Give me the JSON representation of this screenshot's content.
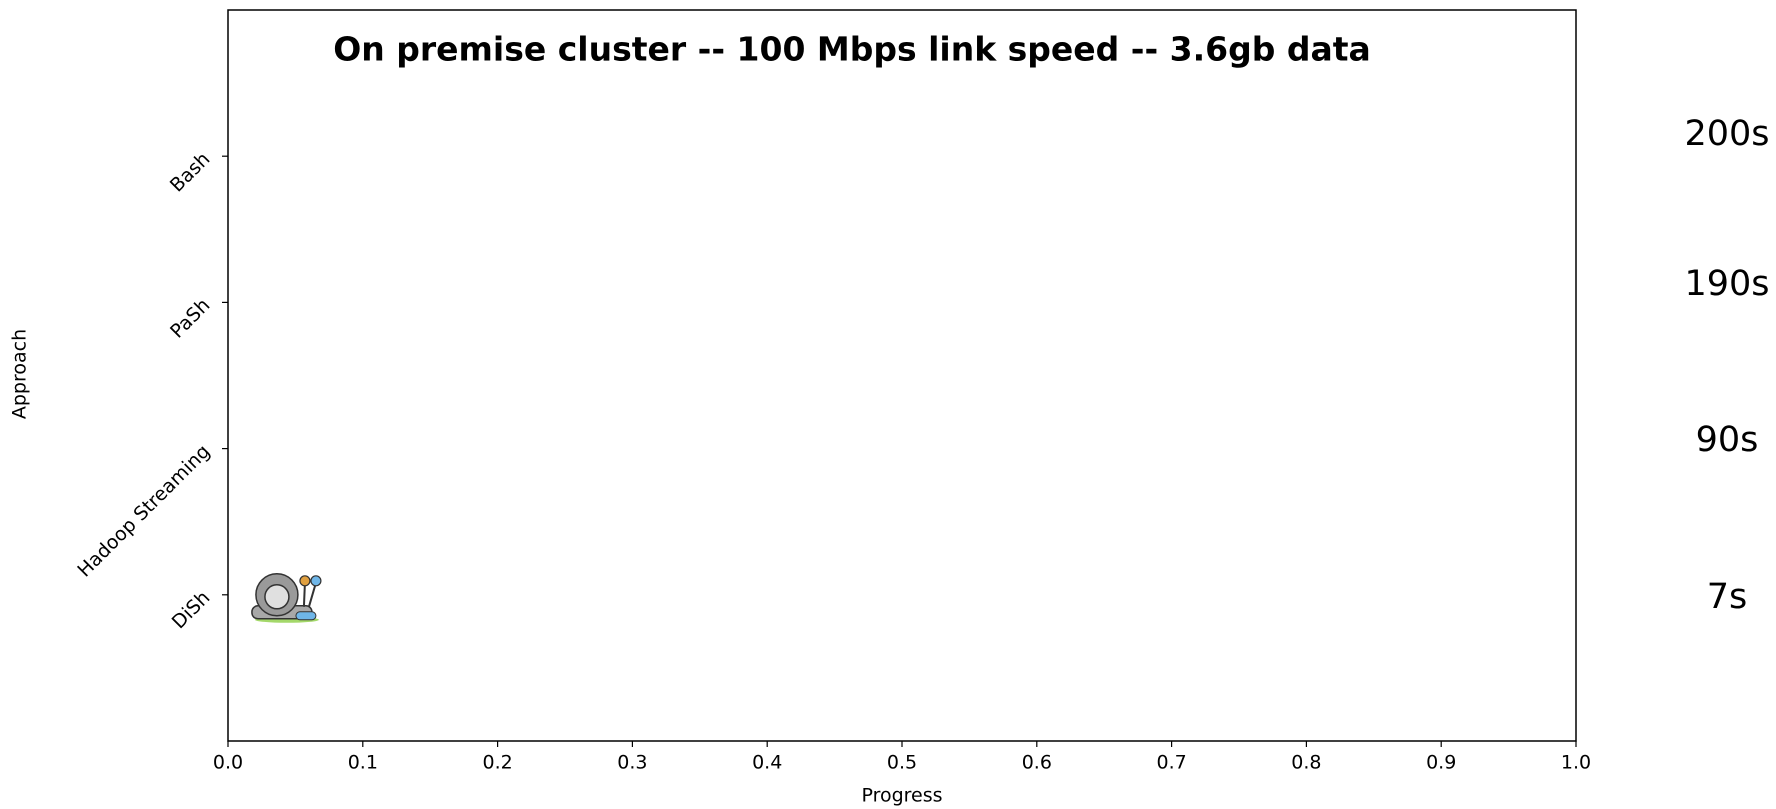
{
  "chart_data": {
    "type": "progress",
    "title": "On premise cluster  --  100 Mbps link speed    --  3.6gb data",
    "x_label": "Progress",
    "y_label": "Approach",
    "categories": [
      "Bash",
      "PaSh",
      "Hadoop Streaming",
      "DiSh"
    ],
    "values": [
      null,
      null,
      null,
      0.04
    ],
    "time_labels": [
      "200s",
      "190s",
      "90s",
      "7s"
    ],
    "xlim": [
      0,
      1
    ],
    "xticks": [
      {
        "value": 0,
        "label": "0.0"
      },
      0.1,
      0.2,
      0.3,
      0.4,
      0.5,
      0.6,
      0.7,
      0.8,
      0.9,
      {
        "value": 1,
        "label": "1.0"
      }
    ]
  }
}
